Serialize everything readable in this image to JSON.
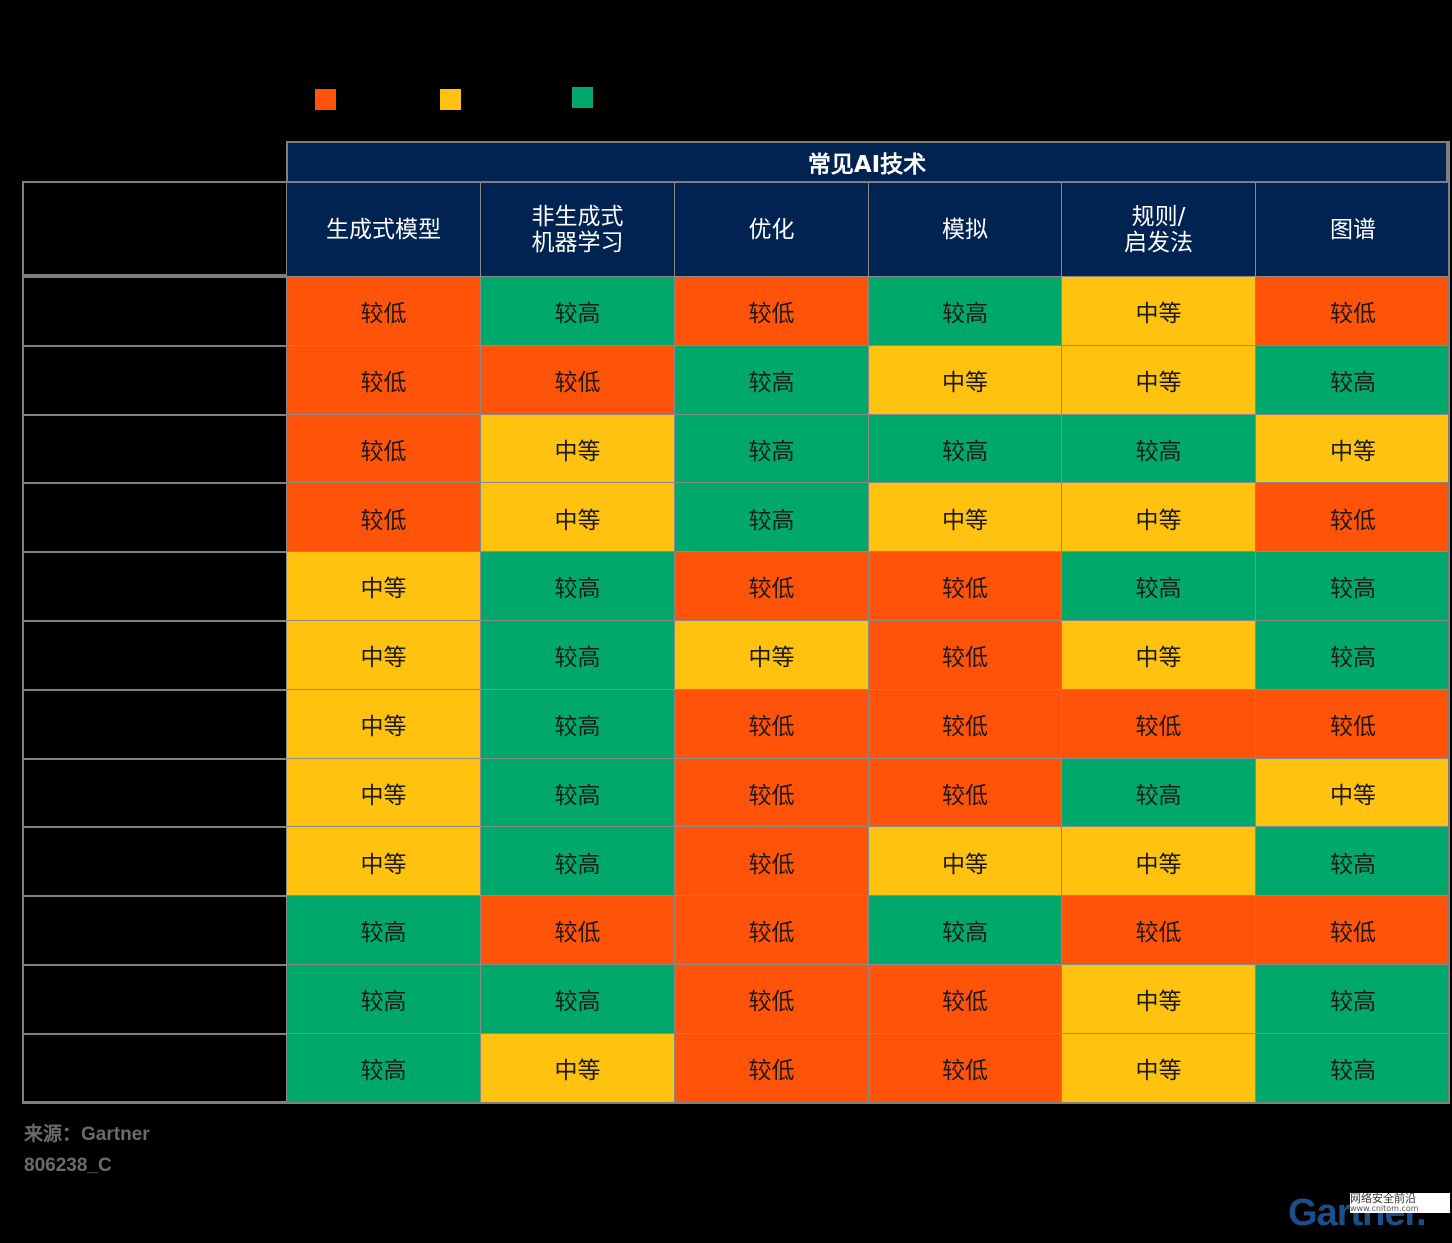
{
  "legend": {
    "items": [
      {
        "color": "#FF5309",
        "label": ""
      },
      {
        "color": "#FFC20E",
        "label": ""
      },
      {
        "color": "#00A86B",
        "label": ""
      }
    ]
  },
  "chart_data": {
    "type": "table",
    "title": "",
    "header_group": "常见AI技术",
    "columns": [
      "生成式模型",
      "非生成式\n机器学习",
      "优化",
      "模拟",
      "规则/\n启发法",
      "图谱"
    ],
    "rows": [
      [
        "较低",
        "较高",
        "较低",
        "较高",
        "中等",
        "较低"
      ],
      [
        "较低",
        "较低",
        "较高",
        "中等",
        "中等",
        "较高"
      ],
      [
        "较低",
        "中等",
        "较高",
        "较高",
        "较高",
        "中等"
      ],
      [
        "较低",
        "中等",
        "较高",
        "中等",
        "中等",
        "较低"
      ],
      [
        "中等",
        "较高",
        "较低",
        "较低",
        "较高",
        "较高"
      ],
      [
        "中等",
        "较高",
        "中等",
        "较低",
        "中等",
        "较高"
      ],
      [
        "中等",
        "较高",
        "较低",
        "较低",
        "较低",
        "较低"
      ],
      [
        "中等",
        "较高",
        "较低",
        "较低",
        "较高",
        "中等"
      ],
      [
        "中等",
        "较高",
        "较低",
        "中等",
        "中等",
        "较高"
      ],
      [
        "较高",
        "较低",
        "较低",
        "较高",
        "较低",
        "较低"
      ],
      [
        "较高",
        "较高",
        "较低",
        "较低",
        "中等",
        "较高"
      ],
      [
        "较高",
        "中等",
        "较低",
        "较低",
        "中等",
        "较高"
      ]
    ],
    "level_colors": {
      "较低": "#FF5309",
      "中等": "#FFC20E",
      "较高": "#00A86B"
    }
  },
  "footer": {
    "source": "来源：Gartner",
    "code": "806238_C"
  },
  "branding": {
    "logo": "Gartner.",
    "watermark_line1": "网络安全前沿",
    "watermark_line2": "www.cnitom.com"
  }
}
